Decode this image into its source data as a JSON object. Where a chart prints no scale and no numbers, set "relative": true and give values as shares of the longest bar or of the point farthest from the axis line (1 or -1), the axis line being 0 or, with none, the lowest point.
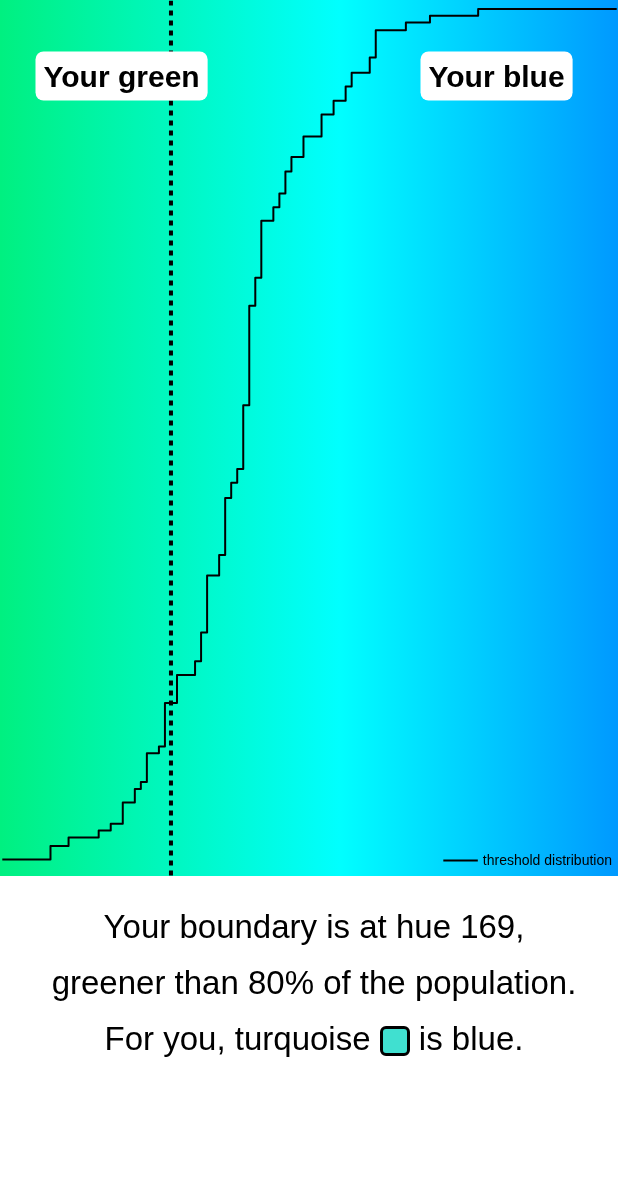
{
  "chart_data": {
    "type": "step",
    "relative": true,
    "tick_labels": false,
    "grid": false,
    "legend": "bottom right",
    "line_style": "solid",
    "marker": "none",
    "categories": [
      null,
      null,
      null,
      null,
      null,
      null,
      null,
      null,
      null,
      null,
      null,
      null,
      null,
      null,
      null,
      null,
      null,
      null,
      null,
      null,
      null,
      null,
      null,
      null,
      null,
      null,
      null,
      null,
      null,
      null,
      null,
      null,
      null,
      null,
      null,
      null,
      null,
      null,
      null,
      null,
      null,
      null,
      null,
      null,
      null,
      null,
      null,
      null,
      null,
      null,
      null,
      null,
      null,
      null,
      null,
      null,
      null,
      null,
      null,
      null,
      null,
      null,
      null,
      null,
      null,
      null,
      null,
      null,
      null,
      null,
      null,
      null,
      null,
      null,
      null,
      null,
      null,
      null,
      null,
      null,
      null,
      null,
      null,
      null,
      null,
      null,
      null,
      null,
      null,
      null,
      null,
      null,
      null,
      null,
      null,
      null,
      null,
      null,
      null,
      null,
      null,
      null,
      null
    ],
    "series": [
      {
        "name": "threshold distribution",
        "color": "#000000",
        "values": [
          0,
          0,
          0,
          0,
          0,
          0,
          0,
          0,
          0.016,
          0.016,
          0.016,
          0.026,
          0.026,
          0.026,
          0.026,
          0.026,
          0.034,
          0.034,
          0.042,
          0.042,
          0.067,
          0.067,
          0.083,
          0.091,
          0.125,
          0.125,
          0.133,
          0.184,
          0.184,
          0.217,
          0.217,
          0.217,
          0.233,
          0.267,
          0.334,
          0.334,
          0.358,
          0.425,
          0.443,
          0.459,
          0.534,
          0.651,
          0.684,
          0.751,
          0.751,
          0.767,
          0.783,
          0.809,
          0.826,
          0.826,
          0.85,
          0.85,
          0.85,
          0.876,
          0.876,
          0.892,
          0.892,
          0.909,
          0.925,
          0.925,
          0.925,
          0.943,
          0.975,
          0.975,
          0.975,
          0.975,
          0.975,
          0.984,
          0.984,
          0.984,
          0.984,
          0.992,
          0.992,
          0.992,
          0.992,
          0.992,
          0.992,
          0.992,
          0.992,
          1,
          1,
          1,
          1,
          1,
          1,
          1,
          1,
          1,
          1,
          1,
          1,
          1,
          1,
          1,
          1,
          1,
          1,
          1,
          1,
          1,
          1,
          1,
          1
        ]
      }
    ],
    "annotations": [
      "Your green",
      "Your blue",
      "Your boundary is at hue 169, greener than 80% of the population. For you, turquoise",
      "is blue."
    ]
  }
}
